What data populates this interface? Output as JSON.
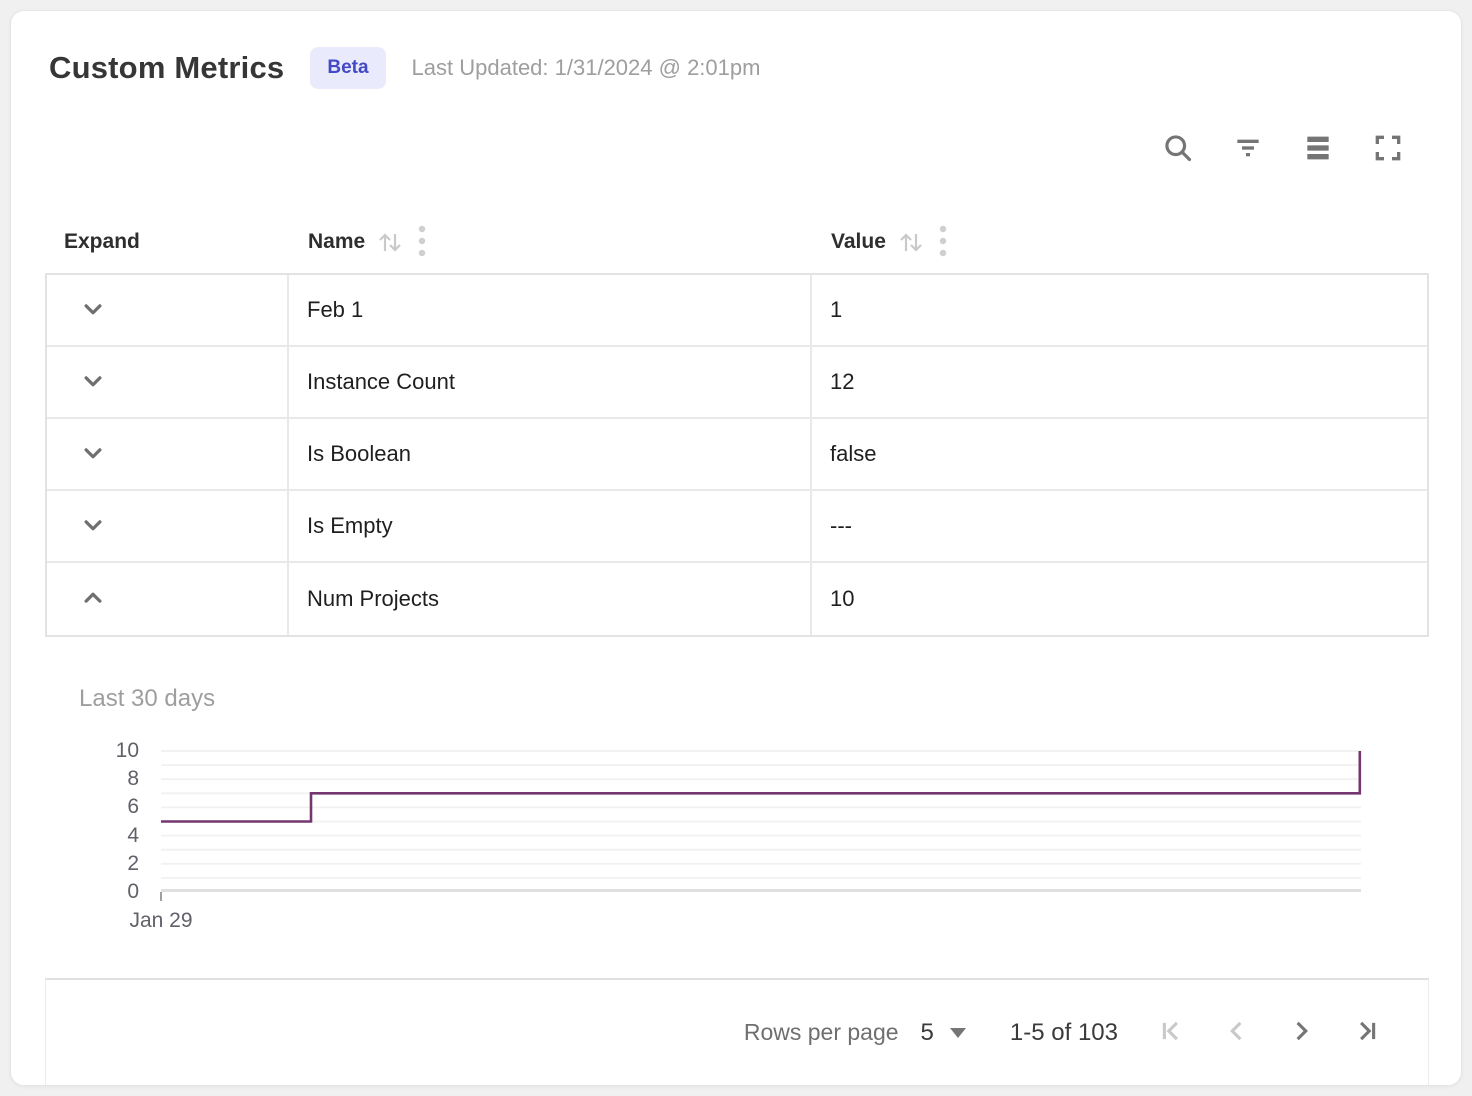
{
  "header": {
    "title": "Custom Metrics",
    "badge": "Beta",
    "last_updated": "Last Updated: 1/31/2024 @ 2:01pm"
  },
  "toolbar": {
    "icons": [
      "search-icon",
      "filter-icon",
      "density-icon",
      "fullscreen-icon"
    ],
    "icon_color": "#757575"
  },
  "table": {
    "columns": [
      {
        "label": "Expand",
        "sortable": false
      },
      {
        "label": "Name",
        "sortable": true
      },
      {
        "label": "Value",
        "sortable": true
      }
    ],
    "rows": [
      {
        "name": "Feb 1",
        "value": "1",
        "expanded": false
      },
      {
        "name": "Instance Count",
        "value": "12",
        "expanded": false
      },
      {
        "name": "Is Boolean",
        "value": "false",
        "expanded": false
      },
      {
        "name": "Is Empty",
        "value": "---",
        "expanded": false
      },
      {
        "name": "Num Projects",
        "value": "10",
        "expanded": true
      }
    ]
  },
  "chart_data": {
    "type": "line",
    "subtype": "step",
    "title": "Last 30 days",
    "series": [
      {
        "name": "Num Projects",
        "points_pct": [
          [
            0,
            5
          ],
          [
            12.5,
            5
          ],
          [
            12.5,
            7
          ],
          [
            99.9,
            7
          ],
          [
            99.9,
            10
          ]
        ]
      }
    ],
    "ylim": [
      0,
      10
    ],
    "yticks": [
      0,
      2,
      4,
      6,
      8,
      10
    ],
    "grid_step": 1,
    "xticks": [
      "Jan 29"
    ],
    "line_color": "#74366f",
    "grid_color": "#f1f1f1",
    "axis_color": "#e0e0e0",
    "legend": "none"
  },
  "pagination": {
    "rows_per_page_label": "Rows per page",
    "rows_per_page_value": "5",
    "range_label": "1-5 of 103",
    "first_disabled": true,
    "prev_disabled": true,
    "next_disabled": false,
    "last_disabled": false
  }
}
